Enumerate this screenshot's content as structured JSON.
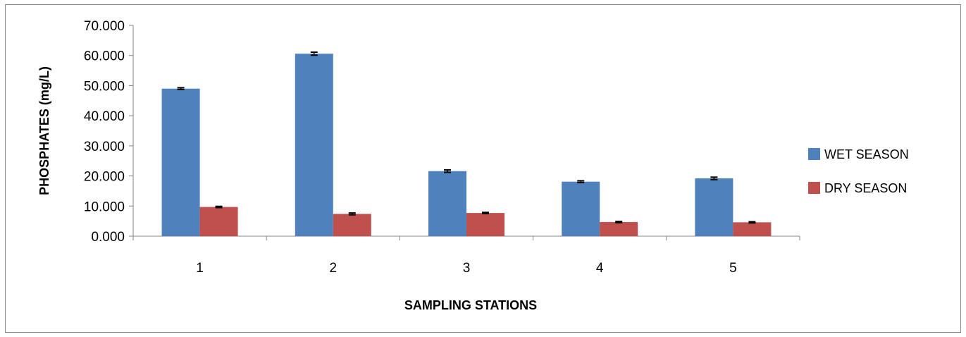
{
  "chart_data": {
    "type": "bar",
    "title": "",
    "xlabel": "SAMPLING STATIONS",
    "ylabel": "PHOSPHATES  (mg/L)",
    "categories": [
      "1",
      "2",
      "3",
      "4",
      "5"
    ],
    "series": [
      {
        "name": "WET SEASON",
        "color": "#4f81bd",
        "values": [
          49.0,
          60.6,
          21.6,
          18.1,
          19.2
        ],
        "errors": [
          0.3,
          0.5,
          0.4,
          0.3,
          0.4
        ]
      },
      {
        "name": "DRY SEASON",
        "color": "#c0504d",
        "values": [
          9.7,
          7.4,
          7.7,
          4.7,
          4.6
        ],
        "errors": [
          0.2,
          0.3,
          0.2,
          0.2,
          0.2
        ]
      }
    ],
    "ylim": [
      0,
      70
    ],
    "yticks": [
      "0.000",
      "10.000",
      "20.000",
      "30.000",
      "40.000",
      "50.000",
      "60.000",
      "70.000"
    ],
    "grid": false,
    "legend_position": "right"
  }
}
